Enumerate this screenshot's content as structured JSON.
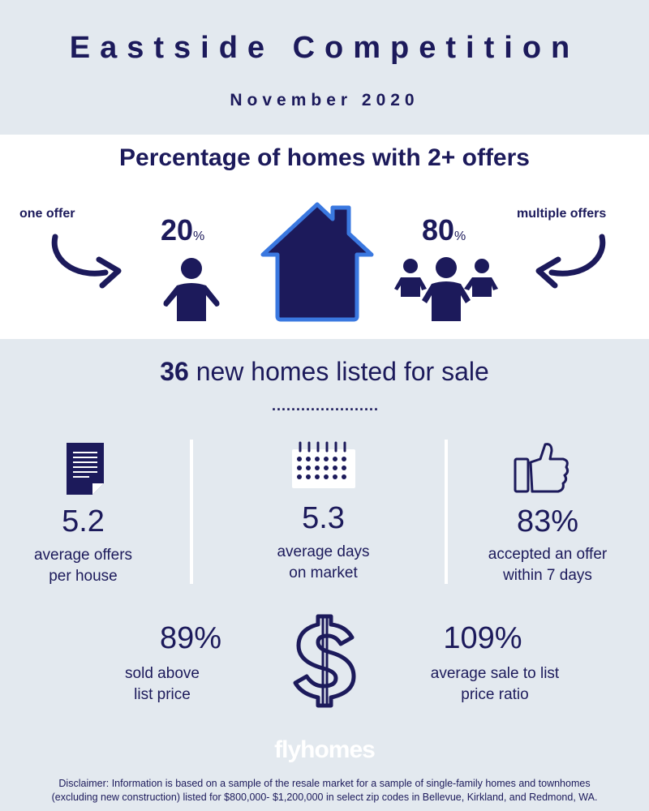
{
  "header": {
    "title": "Eastside Competition",
    "subtitle": "November 2020"
  },
  "offers": {
    "title": "Percentage of homes with 2+ offers",
    "one_offer_label": "one offer",
    "multiple_offers_label": "multiple offers",
    "one_offer_value": "20",
    "multiple_offers_value": "80",
    "percent_sign": "%"
  },
  "listing": {
    "count": "36",
    "text": "new homes listed for sale",
    "dots": "......................"
  },
  "stats": [
    {
      "value": "5.2",
      "label_line1": "average offers",
      "label_line2": "per house",
      "icon": "document-icon"
    },
    {
      "value": "5.3",
      "label_line1": "average days",
      "label_line2": "on market",
      "icon": "calendar-icon"
    },
    {
      "value": "83%",
      "label_line1": "accepted an offer",
      "label_line2": "within 7 days",
      "icon": "thumbs-up-icon"
    },
    {
      "value": "89%",
      "label_line1": "sold above",
      "label_line2": "list price"
    },
    {
      "value": "109%",
      "label_line1": "average sale to list",
      "label_line2": "price ratio"
    }
  ],
  "center_icon": "dollar-sign-icon",
  "brand": "flyhomes",
  "disclaimer_line1": "Disclaimer: Information is based on a sample of the resale market for a sample of single-family homes and townhomes",
  "disclaimer_line2": "(excluding new construction) listed for $800,000- $1,200,000 in select zip codes in Bellevue, Kirkland, and Redmond, WA.",
  "colors": {
    "navy": "#1c1a5b",
    "house_outline": "#3a78e0",
    "background": "#e3e9ef",
    "band": "#ffffff"
  }
}
